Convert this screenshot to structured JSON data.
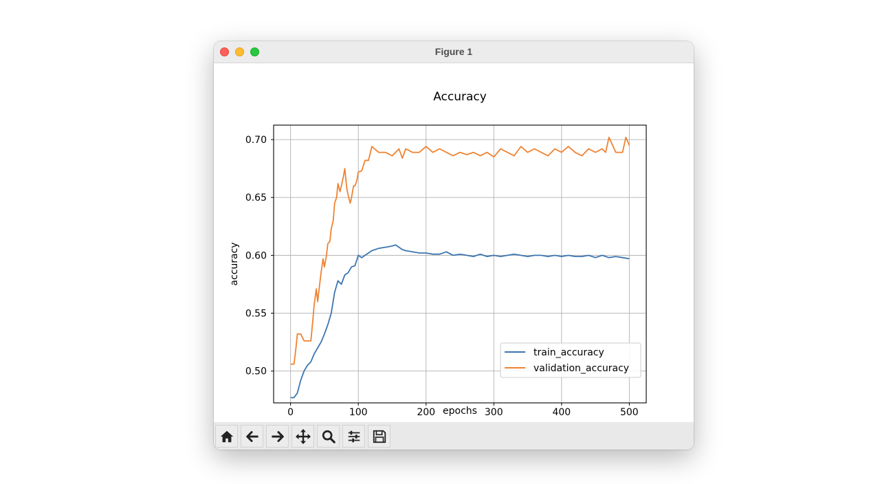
{
  "window": {
    "title": "Figure 1"
  },
  "toolbar": {
    "buttons": [
      {
        "name": "home",
        "icon": "home-icon"
      },
      {
        "name": "back",
        "icon": "arrow-left-icon"
      },
      {
        "name": "forward",
        "icon": "arrow-right-icon"
      },
      {
        "name": "pan",
        "icon": "move-icon"
      },
      {
        "name": "zoom",
        "icon": "magnifier-icon"
      },
      {
        "name": "configure-subplots",
        "icon": "sliders-icon"
      },
      {
        "name": "save",
        "icon": "floppy-disk-icon"
      }
    ]
  },
  "chart_data": {
    "type": "line",
    "title": "Accuracy",
    "xlabel": "epochs",
    "ylabel": "accuracy",
    "xlim": [
      -25,
      525
    ],
    "ylim": [
      0.4725,
      0.7125
    ],
    "xticks": [
      0,
      100,
      200,
      300,
      400,
      500
    ],
    "xtick_labels": [
      "0",
      "100",
      "200",
      "300",
      "400",
      "500"
    ],
    "yticks": [
      0.5,
      0.55,
      0.6,
      0.65,
      0.7
    ],
    "ytick_labels": [
      "0.50",
      "0.55",
      "0.60",
      "0.65",
      "0.70"
    ],
    "grid": true,
    "legend_position": "lower-right",
    "colors": {
      "train_accuracy": "#3a75b0",
      "validation_accuracy": "#ef8230"
    },
    "series": [
      {
        "name": "train_accuracy",
        "x": [
          0,
          5,
          10,
          15,
          20,
          25,
          30,
          35,
          40,
          45,
          50,
          55,
          60,
          65,
          70,
          75,
          80,
          85,
          90,
          95,
          100,
          105,
          110,
          120,
          130,
          140,
          150,
          155,
          160,
          165,
          170,
          180,
          190,
          200,
          210,
          220,
          230,
          240,
          250,
          260,
          270,
          280,
          290,
          300,
          310,
          320,
          330,
          340,
          350,
          360,
          370,
          380,
          390,
          400,
          410,
          420,
          430,
          440,
          450,
          460,
          470,
          480,
          490,
          500
        ],
        "y": [
          0.477,
          0.477,
          0.481,
          0.492,
          0.5,
          0.505,
          0.508,
          0.515,
          0.52,
          0.525,
          0.532,
          0.54,
          0.55,
          0.568,
          0.578,
          0.575,
          0.583,
          0.585,
          0.59,
          0.591,
          0.6,
          0.598,
          0.6,
          0.604,
          0.606,
          0.607,
          0.608,
          0.609,
          0.607,
          0.605,
          0.604,
          0.603,
          0.602,
          0.602,
          0.601,
          0.601,
          0.603,
          0.6,
          0.601,
          0.6,
          0.599,
          0.601,
          0.599,
          0.6,
          0.599,
          0.6,
          0.601,
          0.6,
          0.599,
          0.6,
          0.6,
          0.599,
          0.6,
          0.599,
          0.6,
          0.599,
          0.599,
          0.6,
          0.598,
          0.6,
          0.598,
          0.599,
          0.598,
          0.597
        ]
      },
      {
        "name": "validation_accuracy",
        "x": [
          0,
          5,
          8,
          10,
          15,
          20,
          25,
          30,
          33,
          35,
          38,
          40,
          43,
          45,
          48,
          50,
          53,
          55,
          58,
          60,
          63,
          65,
          68,
          70,
          73,
          75,
          78,
          80,
          83,
          85,
          88,
          90,
          93,
          95,
          98,
          100,
          105,
          110,
          115,
          120,
          130,
          140,
          150,
          160,
          165,
          170,
          180,
          190,
          200,
          210,
          220,
          230,
          240,
          250,
          260,
          270,
          280,
          290,
          300,
          310,
          320,
          330,
          340,
          350,
          360,
          370,
          380,
          390,
          400,
          410,
          420,
          430,
          440,
          450,
          460,
          465,
          470,
          480,
          490,
          495,
          500
        ],
        "y": [
          0.506,
          0.506,
          0.52,
          0.532,
          0.532,
          0.526,
          0.526,
          0.526,
          0.545,
          0.558,
          0.571,
          0.56,
          0.575,
          0.585,
          0.597,
          0.59,
          0.6,
          0.61,
          0.612,
          0.623,
          0.63,
          0.645,
          0.65,
          0.662,
          0.655,
          0.66,
          0.668,
          0.675,
          0.658,
          0.652,
          0.645,
          0.65,
          0.66,
          0.66,
          0.665,
          0.672,
          0.673,
          0.682,
          0.682,
          0.694,
          0.689,
          0.689,
          0.686,
          0.692,
          0.684,
          0.692,
          0.689,
          0.689,
          0.694,
          0.689,
          0.692,
          0.689,
          0.686,
          0.689,
          0.687,
          0.689,
          0.686,
          0.689,
          0.685,
          0.692,
          0.689,
          0.686,
          0.694,
          0.689,
          0.692,
          0.689,
          0.686,
          0.692,
          0.689,
          0.694,
          0.689,
          0.686,
          0.692,
          0.689,
          0.692,
          0.689,
          0.702,
          0.689,
          0.689,
          0.702,
          0.695
        ]
      }
    ]
  }
}
